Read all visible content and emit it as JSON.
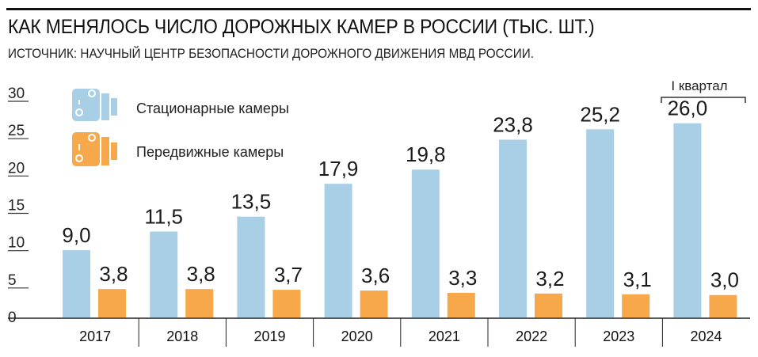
{
  "chart_data": {
    "type": "bar",
    "title": "КАК МЕНЯЛОСЬ ЧИСЛО ДОРОЖНЫХ КАМЕР В РОССИИ (ТЫС. ШТ.)",
    "subtitle": "ИСТОЧНИК: НАУЧНЫЙ ЦЕНТР БЕЗОПАСНОСТИ ДОРОЖНОГО ДВИЖЕНИЯ МВД РОССИИ.",
    "categories": [
      "2017",
      "2018",
      "2019",
      "2020",
      "2021",
      "2022",
      "2023",
      "2024"
    ],
    "series": [
      {
        "name": "Стационарные камеры",
        "color": "#a9cfe6",
        "values": [
          9.0,
          11.5,
          13.5,
          17.9,
          19.8,
          23.8,
          25.2,
          26.0
        ],
        "labels": [
          "9,0",
          "11,5",
          "13,5",
          "17,9",
          "19,8",
          "23,8",
          "25,2",
          "26,0"
        ]
      },
      {
        "name": "Передвижные камеры",
        "color": "#f7a84a",
        "values": [
          3.8,
          3.8,
          3.7,
          3.6,
          3.3,
          3.2,
          3.1,
          3.0
        ],
        "labels": [
          "3,8",
          "3,8",
          "3,7",
          "3,6",
          "3,3",
          "3,2",
          "3,1",
          "3,0"
        ]
      }
    ],
    "yticks": [
      "0",
      "5",
      "10",
      "15",
      "20",
      "25",
      "30"
    ],
    "ylim": [
      0,
      30
    ],
    "annotation": "I квартал",
    "legend_position": "top-left"
  }
}
